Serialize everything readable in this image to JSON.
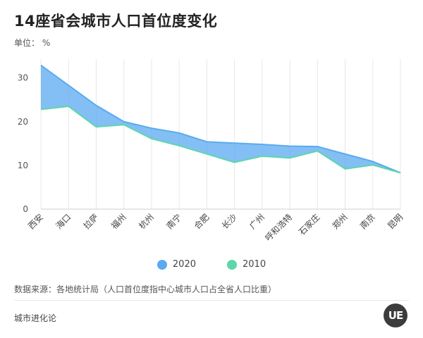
{
  "title": "14座省会城市人口首位度变化",
  "unit_label": "单位： %",
  "source": "数据来源：各地统计局（人口首位度指中心城市人口占全省人口比重）",
  "brand": "城市进化论",
  "logo_text": "UE",
  "chart_data": {
    "type": "area",
    "categories": [
      "西安",
      "海口",
      "拉萨",
      "福州",
      "杭州",
      "南宁",
      "合肥",
      "长沙",
      "广州",
      "呼和浩特",
      "石家庄",
      "郑州",
      "南京",
      "昆明"
    ],
    "series": [
      {
        "name": "2020",
        "color": "#5aaaf0",
        "values": [
          32.9,
          28.3,
          23.7,
          20.0,
          18.5,
          17.4,
          15.4,
          15.1,
          14.8,
          14.4,
          14.3,
          12.6,
          10.9,
          8.3
        ]
      },
      {
        "name": "2010",
        "color": "#5dd6aa",
        "values": [
          22.8,
          23.5,
          18.8,
          19.3,
          16.1,
          14.5,
          12.6,
          10.7,
          12.1,
          11.7,
          13.3,
          9.2,
          10.1,
          8.3
        ]
      }
    ],
    "yticks": [
      0,
      10,
      20,
      30
    ],
    "ylim": [
      0,
      33
    ],
    "grid": "vertical",
    "legend": "bottom-center"
  }
}
